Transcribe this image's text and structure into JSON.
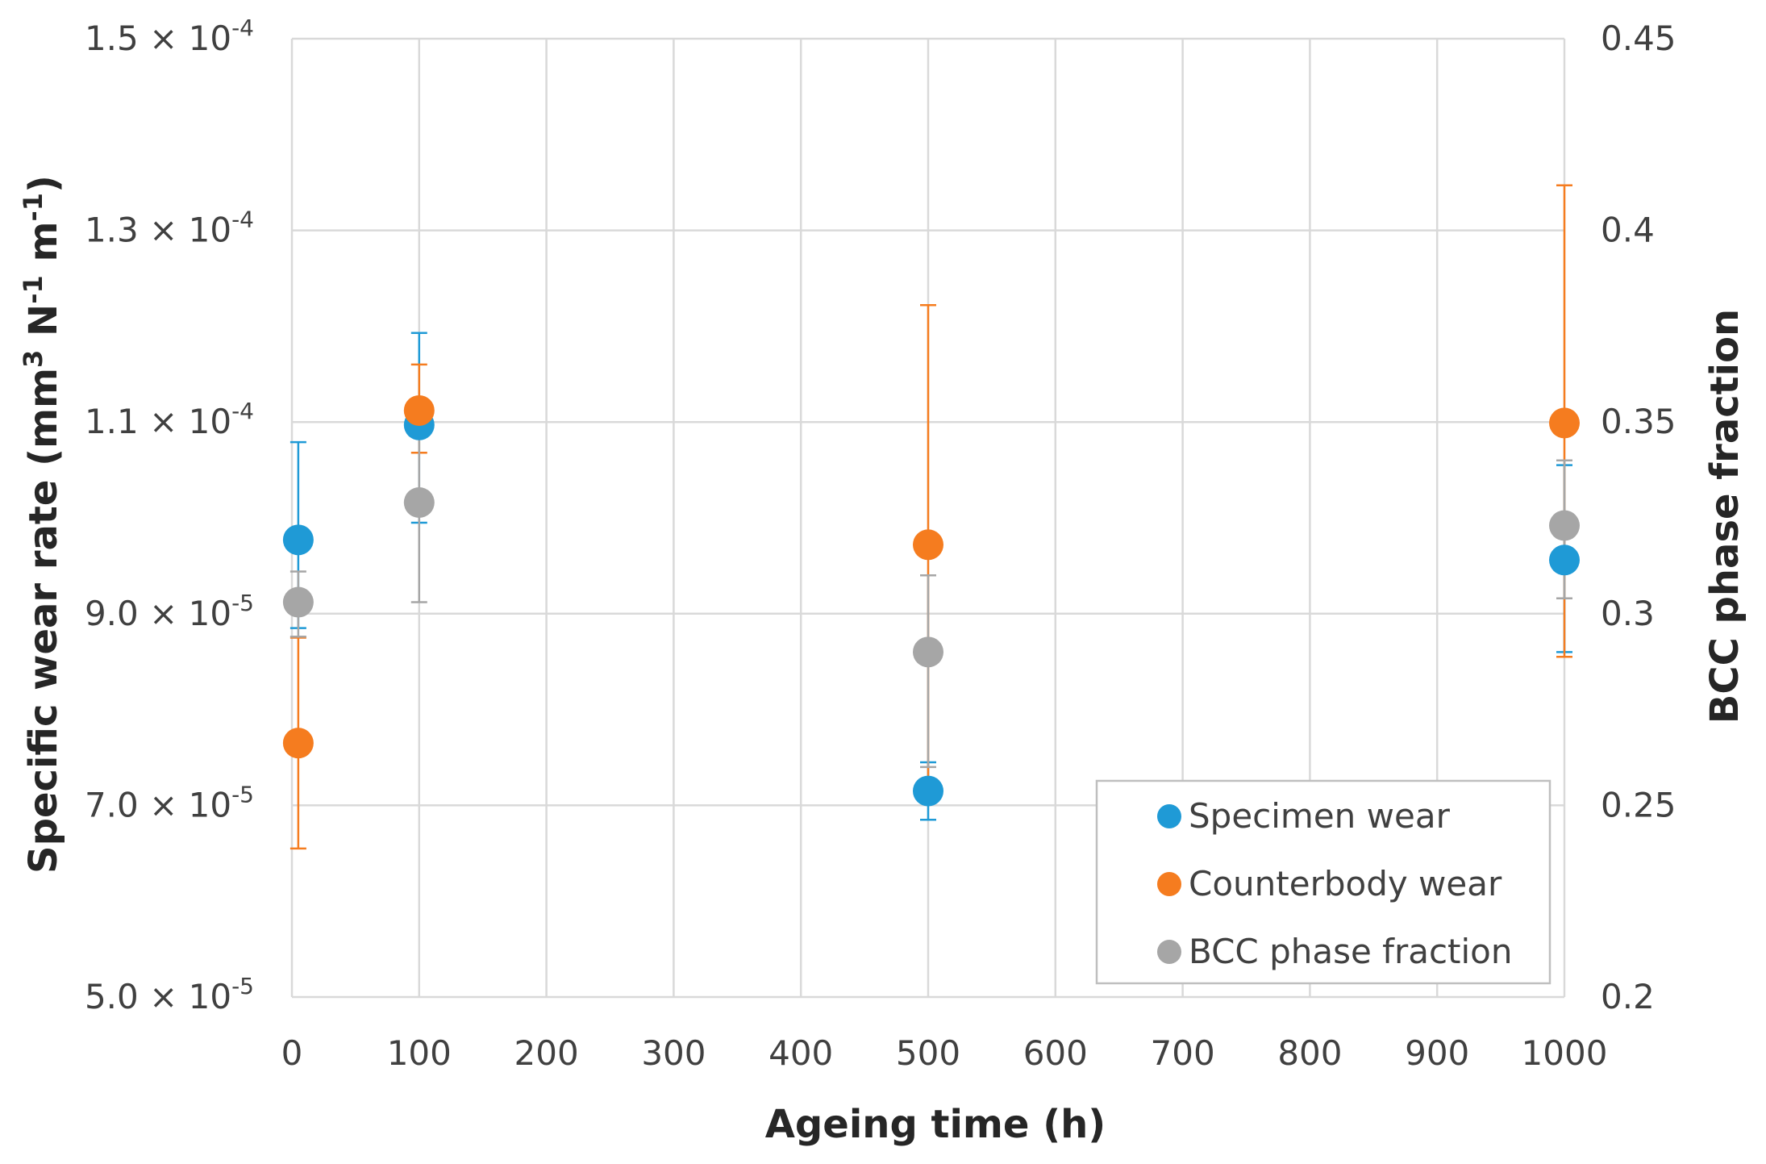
{
  "chart_data": {
    "type": "scatter",
    "xlabel": "Ageing time (h)",
    "ylabel_left": "Specific wear rate (mm3 N-1 m-1)",
    "ylabel_right": "BCC phase fraction",
    "xlim": [
      0,
      1000
    ],
    "xticks": [
      0,
      100,
      200,
      300,
      400,
      500,
      600,
      700,
      800,
      900,
      1000
    ],
    "ylim_left": [
      5e-05,
      0.00015
    ],
    "yticks_left": [
      {
        "mantissa": "5.0",
        "exp": "-5"
      },
      {
        "mantissa": "7.0",
        "exp": "-5"
      },
      {
        "mantissa": "9.0",
        "exp": "-5"
      },
      {
        "mantissa": "1.1",
        "exp": "-4"
      },
      {
        "mantissa": "1.3",
        "exp": "-4"
      },
      {
        "mantissa": "1.5",
        "exp": "-4"
      }
    ],
    "ylim_right": [
      0.2,
      0.45
    ],
    "yticks_right": [
      "0.2",
      "0.25",
      "0.3",
      "0.35",
      "0.4",
      "0.45"
    ],
    "legend_position": "bottom-right",
    "series": [
      {
        "name": "Specimen wear",
        "axis": "left",
        "color": "#1f9ad6",
        "points": [
          {
            "x": 5,
            "y": 9.77e-05,
            "err_low": 8.85e-05,
            "err_high": 0.0001079
          },
          {
            "x": 100,
            "y": 0.0001097,
            "err_low": 9.95e-05,
            "err_high": 0.0001193
          },
          {
            "x": 500,
            "y": 7.15e-05,
            "err_low": 6.85e-05,
            "err_high": 7.45e-05
          },
          {
            "x": 1000,
            "y": 9.56e-05,
            "err_low": 8.6e-05,
            "err_high": 0.0001055
          }
        ]
      },
      {
        "name": "Counterbody wear",
        "axis": "left",
        "color": "#f57c1f",
        "points": [
          {
            "x": 5,
            "y": 7.65e-05,
            "err_low": 6.55e-05,
            "err_high": 8.75e-05
          },
          {
            "x": 100,
            "y": 0.0001112,
            "err_low": 0.0001068,
            "err_high": 0.000116
          },
          {
            "x": 500,
            "y": 9.72e-05,
            "err_low": 7.25e-05,
            "err_high": 0.0001222
          },
          {
            "x": 1000,
            "y": 0.0001099,
            "err_low": 8.55e-05,
            "err_high": 0.0001347
          }
        ]
      },
      {
        "name": "BCC phase fraction",
        "axis": "right",
        "color": "#a6a6a6",
        "points": [
          {
            "x": 5,
            "y": 0.303,
            "err_low": 0.294,
            "err_high": 0.311
          },
          {
            "x": 100,
            "y": 0.329,
            "err_low": 0.303,
            "err_high": 0.348
          },
          {
            "x": 500,
            "y": 0.29,
            "err_low": 0.26,
            "err_high": 0.31
          },
          {
            "x": 1000,
            "y": 0.323,
            "err_low": 0.304,
            "err_high": 0.34
          }
        ]
      }
    ]
  }
}
